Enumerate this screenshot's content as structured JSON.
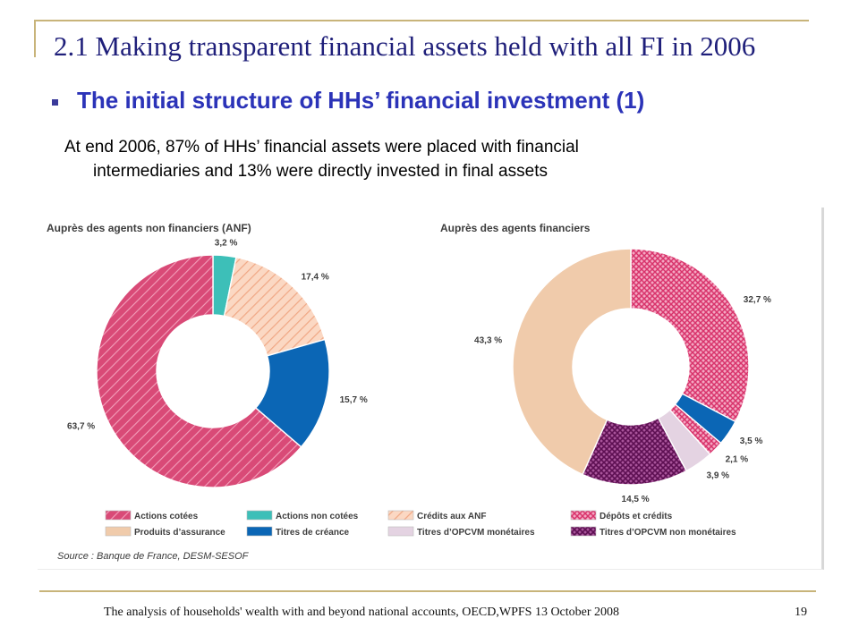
{
  "slide": {
    "title": "2.1 Making transparent financial assets held with all FI in 2006",
    "subtitle": "The initial structure of HHs’ financial investment (1)",
    "body_line1": "At end 2006, 87% of HHs’ financial assets were placed with financial",
    "body_line2": "intermediaries and 13% were directly invested in final assets",
    "footer": "The analysis of households' wealth with and beyond national accounts, OECD,WPFS 13 October 2008",
    "page_number": "19"
  },
  "figure": {
    "source": "Source : Banque de France, DESM-SESOF",
    "legend": [
      {
        "key": "actions_cotees",
        "label": "Actions cotées"
      },
      {
        "key": "actions_non_cotees",
        "label": "Actions non cotées"
      },
      {
        "key": "credits_anf",
        "label": "Crédits aux ANF"
      },
      {
        "key": "depots_credits",
        "label": "Dépôts et crédits"
      },
      {
        "key": "produits_assurance",
        "label": "Produits d’assurance"
      },
      {
        "key": "titres_creance",
        "label": "Titres de créance"
      },
      {
        "key": "opcvm_monetaires",
        "label": "Titres d’OPCVM monétaires"
      },
      {
        "key": "opcvm_non_monetaires",
        "label": "Titres d’OPCVM non monétaires"
      }
    ],
    "styles": {
      "actions_cotees": {
        "color": "#d94a77",
        "pattern": "hatch"
      },
      "actions_non_cotees": {
        "color": "#3dbfb8",
        "pattern": "solid"
      },
      "credits_anf": {
        "color": "#f6b99a",
        "pattern": "hatch"
      },
      "depots_credits": {
        "color": "#e0467c",
        "pattern": "cross"
      },
      "produits_assurance": {
        "color": "#f0cbab",
        "pattern": "solid"
      },
      "titres_creance": {
        "color": "#0b66b5",
        "pattern": "solid"
      },
      "opcvm_monetaires": {
        "color": "#e4d3e2",
        "pattern": "solid"
      },
      "opcvm_non_monetaires": {
        "color": "#7b1b6e",
        "pattern": "cross"
      }
    }
  },
  "chart_data": [
    {
      "type": "pie",
      "donut": true,
      "title": "Auprès des agents non financiers (ANF)",
      "slices": [
        {
          "key": "actions_non_cotees",
          "label": "Actions non cotées",
          "value": 3.2,
          "value_label": "3,2 %"
        },
        {
          "key": "credits_anf",
          "label": "Crédits aux ANF",
          "value": 17.4,
          "value_label": "17,4 %"
        },
        {
          "key": "titres_creance",
          "label": "Titres de créance",
          "value": 15.7,
          "value_label": "15,7 %"
        },
        {
          "key": "actions_cotees",
          "label": "Actions cotées",
          "value": 63.7,
          "value_label": "63,7 %"
        }
      ]
    },
    {
      "type": "pie",
      "donut": true,
      "title": "Auprès des agents financiers",
      "slices": [
        {
          "key": "depots_credits",
          "label": "Dépôts et crédits",
          "value": 32.7,
          "value_label": "32,7 %"
        },
        {
          "key": "titres_creance",
          "label": "Titres de créance",
          "value": 3.5,
          "value_label": "3,5 %"
        },
        {
          "key": "depots_credits",
          "label": "Dépôts et crédits",
          "value": 2.1,
          "value_label": "2,1 %"
        },
        {
          "key": "opcvm_monetaires",
          "label": "Titres d’OPCVM monétaires",
          "value": 3.9,
          "value_label": "3,9 %"
        },
        {
          "key": "opcvm_non_monetaires",
          "label": "Titres d’OPCVM non monétaires",
          "value": 14.5,
          "value_label": "14,5 %"
        },
        {
          "key": "produits_assurance",
          "label": "Produits d’assurance",
          "value": 43.3,
          "value_label": "43,3 %"
        }
      ]
    }
  ]
}
